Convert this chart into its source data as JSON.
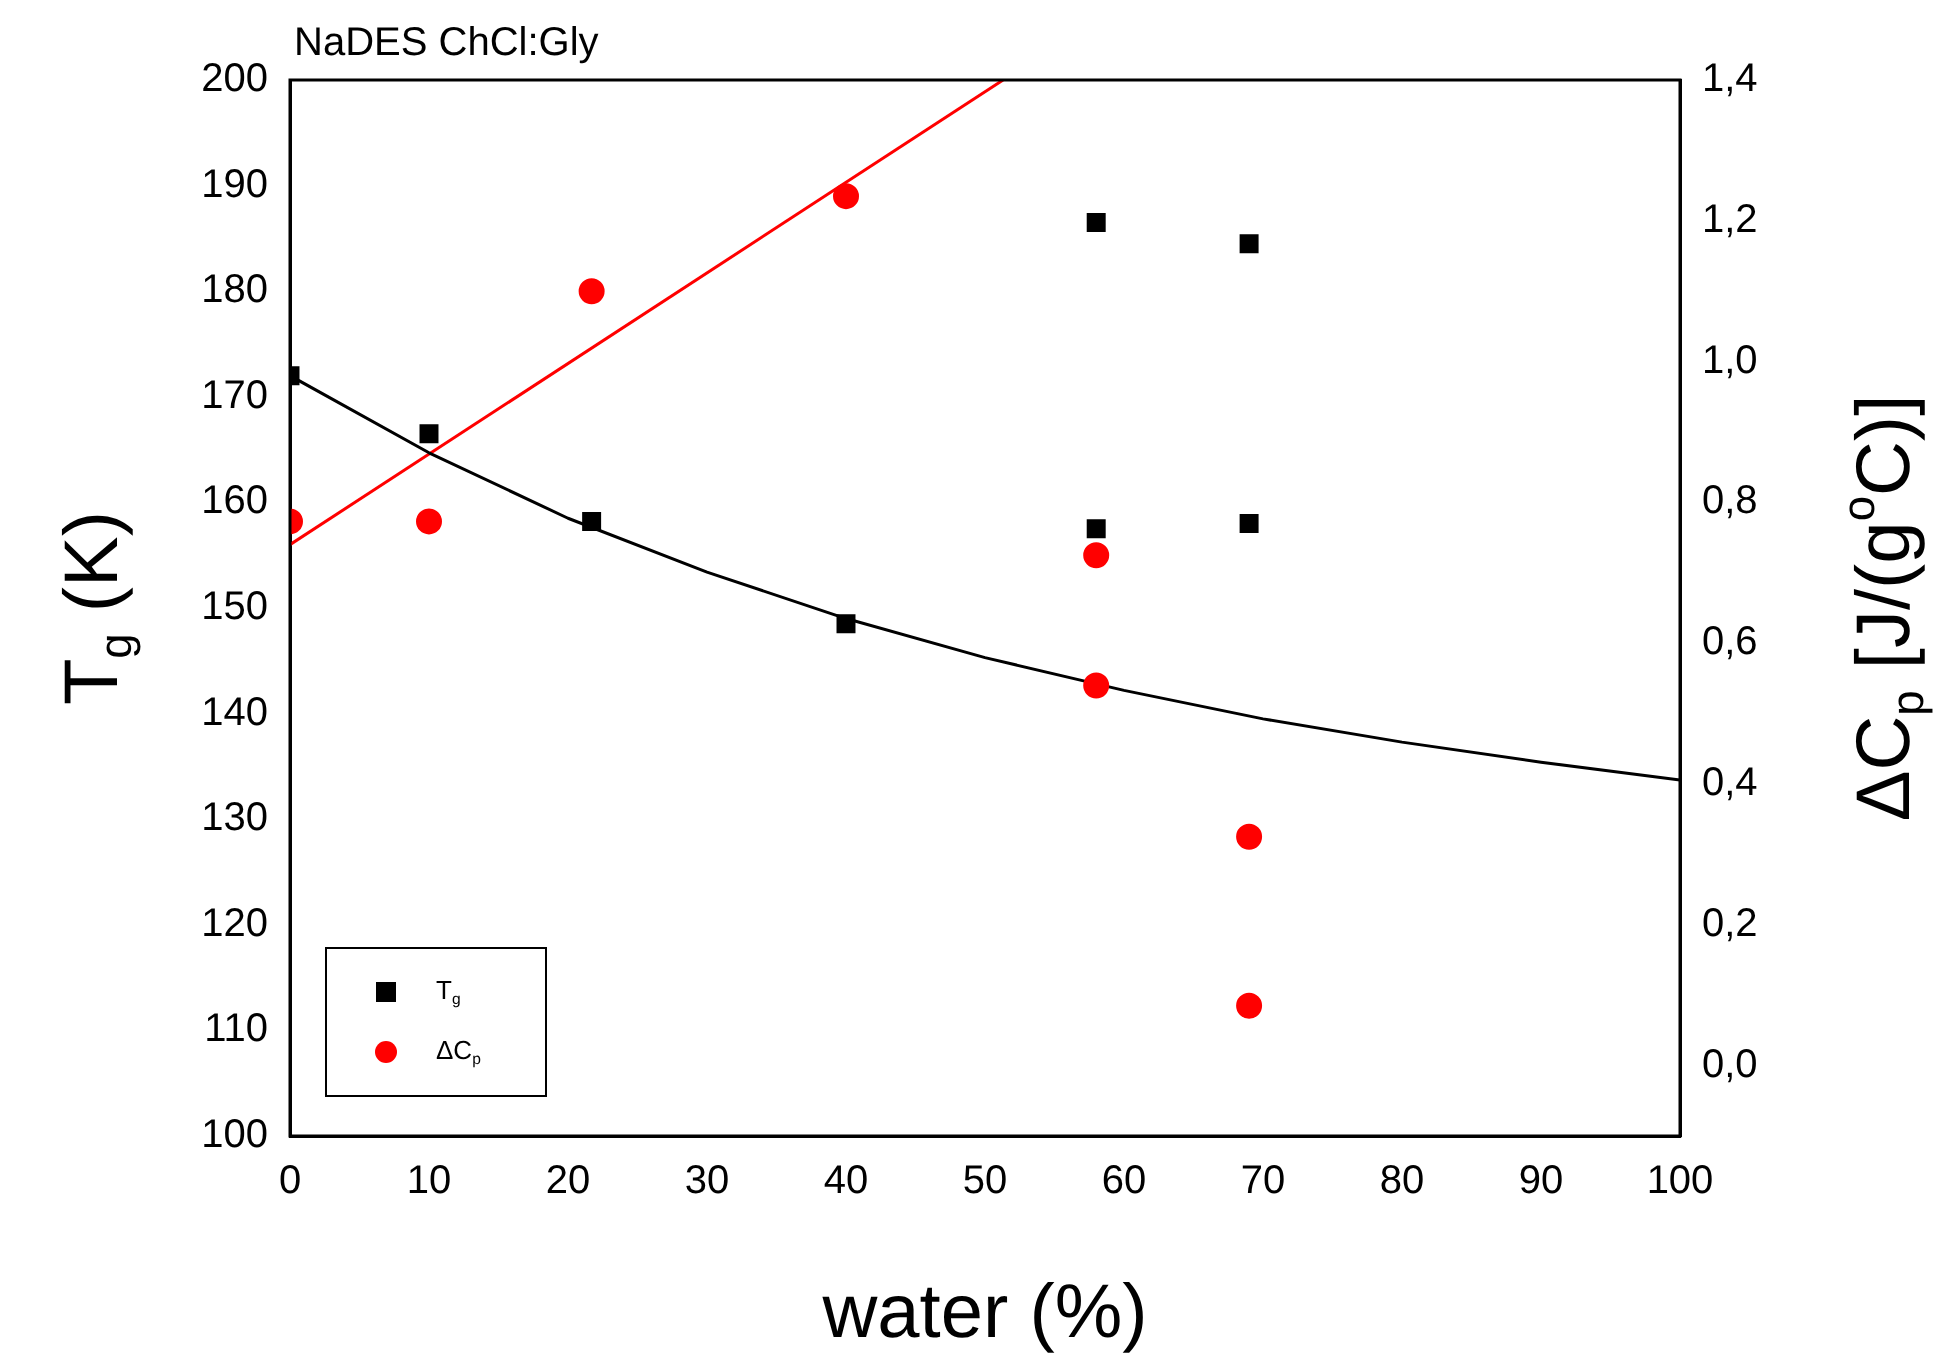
{
  "chart_data": {
    "type": "scatter",
    "title": "NaDES ChCl:Gly",
    "xlabel": "water (%)",
    "ylabel": "T$_{g}$ (K)",
    "y2label": "ΔC$_{p}$ [J/(g$^{o}$C)]",
    "xlim": [
      0,
      100
    ],
    "xticks": [
      0,
      10,
      20,
      30,
      40,
      50,
      60,
      70,
      80,
      90,
      100
    ],
    "ylim": [
      100,
      200
    ],
    "yticks": [
      100,
      110,
      120,
      130,
      140,
      150,
      160,
      170,
      180,
      190,
      200
    ],
    "y2lim": [
      -0.1,
      1.4
    ],
    "y2ticks": [
      {
        "value": 0,
        "label": "0,0"
      },
      {
        "value": 0.2,
        "label": "0,2"
      },
      {
        "value": 0.4,
        "label": "0,4"
      },
      {
        "value": 0.6,
        "label": "0,6"
      },
      {
        "value": 0.8,
        "label": "0,8"
      },
      {
        "value": 1,
        "label": "1,0"
      },
      {
        "value": 1.2,
        "label": "1,2"
      },
      {
        "value": 1.4,
        "label": "1,4"
      }
    ],
    "grid": false,
    "legend": "bottom left",
    "series": [
      {
        "name": "T$_{g}$",
        "marker": "square",
        "color": "#000000",
        "x": [
          0,
          10,
          21.7,
          40,
          58,
          58,
          69,
          69
        ],
        "values": [
          172,
          166.5,
          158.2,
          148.5,
          157.5,
          186.5,
          158,
          184.5
        ]
      },
      {
        "name": "ΔC$_{p}$",
        "marker": "circle",
        "color": "#ff0000",
        "axis": "y2",
        "x": [
          0,
          10,
          21.7,
          40,
          58,
          58,
          69,
          69
        ],
        "values": [
          0.773,
          0.773,
          1.1,
          1.235,
          0.725,
          0.54,
          0.325,
          0.085
        ]
      },
      {
        "type": "line",
        "color": "#000000",
        "x": [
          0,
          10,
          20,
          30,
          40,
          50,
          60,
          70,
          80,
          90,
          100
        ],
        "values": [
          172,
          164.7,
          158.5,
          153.4,
          149,
          145.3,
          142.2,
          139.5,
          137.3,
          135.4,
          133.7
        ]
      },
      {
        "type": "line",
        "color": "#ff0000",
        "axis": "y2",
        "x": [
          0,
          51.3
        ],
        "values": [
          0.74,
          1.4
        ]
      }
    ]
  }
}
